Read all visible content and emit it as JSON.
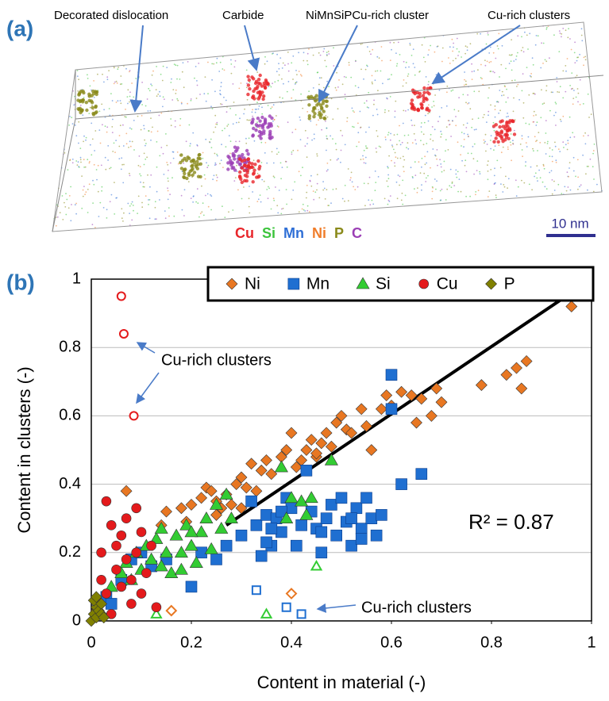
{
  "panel_a": {
    "label": "(a)",
    "annotations": [
      "Decorated dislocation",
      "Carbide",
      "NiMnSiPCu-rich cluster",
      "Cu-rich clusters"
    ],
    "elements": [
      {
        "label": "Cu",
        "color": "#e8262b"
      },
      {
        "label": "Si",
        "color": "#3cc43c"
      },
      {
        "label": "Mn",
        "color": "#2f6fd6"
      },
      {
        "label": "Ni",
        "color": "#f07d2a"
      },
      {
        "label": "P",
        "color": "#8a8a1a"
      },
      {
        "label": "C",
        "color": "#9b3fb5"
      }
    ],
    "scale_bar": "10 nm"
  },
  "chart_data": {
    "type": "scatter",
    "panel_label": "(b)",
    "x_label": "Content in material (-)",
    "y_label": "Content in clusters (-)",
    "xlim": [
      0,
      1
    ],
    "ylim": [
      0,
      1
    ],
    "xticks": [
      0,
      0.2,
      0.4,
      0.6,
      0.8,
      1
    ],
    "yticks": [
      0,
      0.2,
      0.4,
      0.6,
      0.8,
      1
    ],
    "grid": true,
    "legend": "top",
    "annotations": [
      "Cu-rich clusters",
      "R² = 0.87",
      "Cu-rich clusters"
    ],
    "reference_line": {
      "x": [
        0.27,
        1
      ],
      "values": [
        0.28,
        1
      ]
    },
    "series": [
      {
        "name": "Ni",
        "marker": "diamond",
        "color": "#e87722",
        "x": [
          0.07,
          0.14,
          0.15,
          0.18,
          0.19,
          0.2,
          0.22,
          0.23,
          0.24,
          0.25,
          0.26,
          0.27,
          0.28,
          0.29,
          0.3,
          0.31,
          0.32,
          0.33,
          0.34,
          0.35,
          0.36,
          0.38,
          0.39,
          0.4,
          0.41,
          0.42,
          0.43,
          0.44,
          0.45,
          0.46,
          0.47,
          0.48,
          0.49,
          0.5,
          0.51,
          0.52,
          0.54,
          0.55,
          0.56,
          0.58,
          0.59,
          0.6,
          0.62,
          0.64,
          0.65,
          0.66,
          0.68,
          0.69,
          0.7,
          0.78,
          0.83,
          0.85,
          0.86,
          0.87,
          0.96,
          0.3,
          0.25,
          0.45,
          0.02,
          0.01
        ],
        "values": [
          0.38,
          0.28,
          0.32,
          0.33,
          0.29,
          0.34,
          0.36,
          0.39,
          0.38,
          0.35,
          0.33,
          0.37,
          0.34,
          0.4,
          0.42,
          0.39,
          0.46,
          0.38,
          0.44,
          0.47,
          0.43,
          0.48,
          0.5,
          0.55,
          0.45,
          0.47,
          0.5,
          0.53,
          0.48,
          0.52,
          0.55,
          0.51,
          0.58,
          0.6,
          0.56,
          0.55,
          0.62,
          0.57,
          0.5,
          0.62,
          0.66,
          0.63,
          0.67,
          0.66,
          0.58,
          0.65,
          0.6,
          0.68,
          0.64,
          0.69,
          0.72,
          0.74,
          0.68,
          0.76,
          0.92,
          0.33,
          0.31,
          0.49,
          0.05,
          0.03
        ],
        "open_points": {
          "x": [
            0.16,
            0.4
          ],
          "values": [
            0.03,
            0.08
          ]
        }
      },
      {
        "name": "Mn",
        "marker": "square",
        "color": "#1f6fd1",
        "x": [
          0.03,
          0.04,
          0.06,
          0.08,
          0.1,
          0.12,
          0.15,
          0.2,
          0.22,
          0.25,
          0.27,
          0.3,
          0.32,
          0.33,
          0.35,
          0.36,
          0.37,
          0.38,
          0.39,
          0.4,
          0.41,
          0.42,
          0.43,
          0.44,
          0.45,
          0.46,
          0.47,
          0.48,
          0.49,
          0.5,
          0.51,
          0.52,
          0.53,
          0.54,
          0.55,
          0.56,
          0.57,
          0.58,
          0.6,
          0.6,
          0.62,
          0.66,
          0.35,
          0.38,
          0.46,
          0.52,
          0.54,
          0.34,
          0.36
        ],
        "values": [
          0.07,
          0.05,
          0.12,
          0.18,
          0.2,
          0.16,
          0.18,
          0.1,
          0.2,
          0.18,
          0.22,
          0.25,
          0.35,
          0.28,
          0.31,
          0.22,
          0.3,
          0.26,
          0.36,
          0.33,
          0.22,
          0.28,
          0.44,
          0.32,
          0.27,
          0.2,
          0.3,
          0.34,
          0.25,
          0.36,
          0.29,
          0.22,
          0.33,
          0.27,
          0.36,
          0.3,
          0.25,
          0.31,
          0.72,
          0.62,
          0.4,
          0.43,
          0.23,
          0.32,
          0.26,
          0.3,
          0.24,
          0.19,
          0.27
        ],
        "open_points": {
          "x": [
            0.33,
            0.39,
            0.42
          ],
          "values": [
            0.09,
            0.04,
            0.02
          ]
        }
      },
      {
        "name": "Si",
        "marker": "triangle",
        "color": "#33cc33",
        "x": [
          0.04,
          0.06,
          0.07,
          0.08,
          0.09,
          0.1,
          0.11,
          0.12,
          0.13,
          0.14,
          0.15,
          0.16,
          0.17,
          0.18,
          0.19,
          0.2,
          0.21,
          0.22,
          0.23,
          0.24,
          0.25,
          0.26,
          0.27,
          0.28,
          0.38,
          0.4,
          0.42,
          0.44,
          0.48,
          0.39,
          0.43,
          0.14,
          0.2,
          0.18
        ],
        "values": [
          0.1,
          0.14,
          0.17,
          0.12,
          0.2,
          0.15,
          0.22,
          0.18,
          0.24,
          0.16,
          0.2,
          0.14,
          0.25,
          0.2,
          0.28,
          0.22,
          0.17,
          0.26,
          0.3,
          0.21,
          0.34,
          0.27,
          0.37,
          0.3,
          0.45,
          0.36,
          0.35,
          0.36,
          0.47,
          0.3,
          0.31,
          0.27,
          0.26,
          0.15
        ],
        "open_points": {
          "x": [
            0.13,
            0.35,
            0.45
          ],
          "values": [
            0.02,
            0.02,
            0.16
          ]
        }
      },
      {
        "name": "Cu",
        "marker": "circle",
        "color": "#e41a1c",
        "x": [
          0.01,
          0.02,
          0.02,
          0.03,
          0.04,
          0.05,
          0.05,
          0.06,
          0.06,
          0.07,
          0.07,
          0.08,
          0.08,
          0.09,
          0.09,
          0.1,
          0.1,
          0.11,
          0.12,
          0.13,
          0.04,
          0.03
        ],
        "values": [
          0.06,
          0.12,
          0.2,
          0.35,
          0.28,
          0.22,
          0.15,
          0.25,
          0.1,
          0.3,
          0.18,
          0.12,
          0.05,
          0.33,
          0.2,
          0.08,
          0.26,
          0.14,
          0.22,
          0.04,
          0.02,
          0.08
        ],
        "open_points": {
          "x": [
            0.06,
            0.065,
            0.085
          ],
          "values": [
            0.95,
            0.84,
            0.6
          ]
        }
      },
      {
        "name": "P",
        "marker": "diamond",
        "color": "#808000",
        "x": [
          0,
          0.005,
          0.01,
          0.01,
          0.015,
          0.02,
          0.02,
          0.005,
          0.025,
          0.01
        ],
        "values": [
          0,
          0.02,
          0.04,
          0.01,
          0.03,
          0.05,
          0.02,
          0.06,
          0.01,
          0.07
        ]
      }
    ]
  }
}
